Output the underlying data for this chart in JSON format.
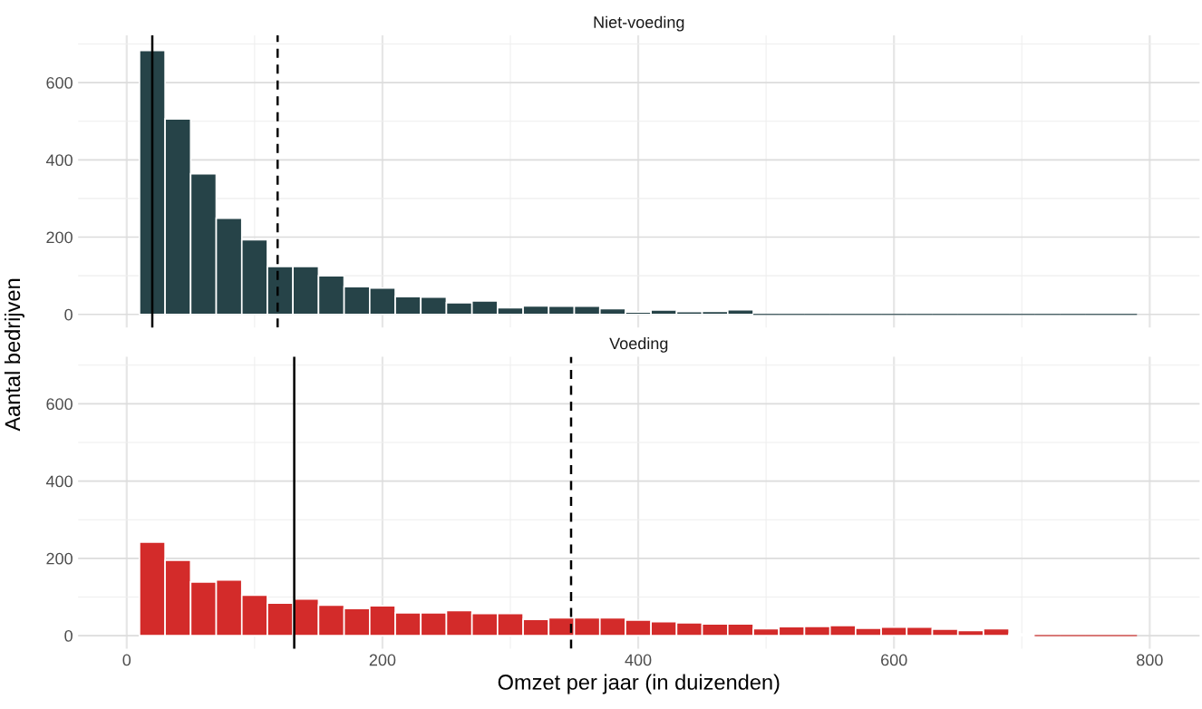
{
  "chart_data": [
    {
      "type": "histogram",
      "title": "Niet-voeding",
      "ylabel": "Aantal bedrijven",
      "bins": [
        10,
        30,
        50,
        70,
        90,
        110,
        130,
        150,
        170,
        190,
        210,
        230,
        250,
        270,
        290,
        310,
        330,
        350,
        370,
        390,
        410,
        430,
        450,
        470,
        490,
        510,
        530,
        550,
        570,
        590,
        610,
        630,
        650,
        670,
        690,
        710,
        730,
        750,
        770,
        790
      ],
      "values": [
        683,
        506,
        364,
        249,
        193,
        124,
        124,
        100,
        72,
        68,
        46,
        45,
        30,
        35,
        17,
        22,
        21,
        21,
        15,
        6,
        11,
        7,
        8,
        12,
        0,
        0,
        0,
        0,
        0,
        0,
        0,
        0,
        0,
        0,
        0,
        0,
        0,
        0,
        0
      ],
      "color": "#264348",
      "xlim": [
        -38,
        839
      ],
      "ylim": [
        -34,
        722
      ],
      "xticks": [
        0,
        {
          "value": 100,
          "label": null
        },
        200,
        {
          "value": 300,
          "label": null
        },
        400,
        {
          "value": 500,
          "label": null
        },
        600,
        {
          "value": 700,
          "label": null
        },
        800
      ],
      "yticks": [
        0,
        {
          "value": 100,
          "label": null
        },
        200,
        {
          "value": 300,
          "label": null
        },
        400,
        {
          "value": 500,
          "label": null
        },
        600,
        {
          "value": 700,
          "label": null
        }
      ],
      "tick_labels": "y",
      "grid": true,
      "ref_lines": [
        {
          "axis": "x",
          "value": 20,
          "line_style": "solid",
          "color": "#000000"
        },
        {
          "axis": "x",
          "value": 118,
          "line_style": "dashed",
          "color": "#000000"
        }
      ]
    },
    {
      "type": "histogram",
      "title": "Voeding",
      "xlabel": "Omzet per jaar (in duizenden)",
      "bins": [
        10,
        30,
        50,
        70,
        90,
        110,
        130,
        150,
        170,
        190,
        210,
        230,
        250,
        270,
        290,
        310,
        330,
        350,
        370,
        390,
        410,
        430,
        450,
        470,
        490,
        510,
        530,
        550,
        570,
        590,
        610,
        630,
        650,
        670,
        690,
        710,
        730,
        750,
        770,
        790
      ],
      "values": [
        242,
        195,
        139,
        144,
        105,
        84,
        95,
        79,
        70,
        77,
        59,
        59,
        65,
        57,
        57,
        42,
        46,
        46,
        46,
        40,
        36,
        33,
        30,
        30,
        18,
        23,
        24,
        26,
        19,
        22,
        22,
        17,
        13,
        18,
        4,
        0,
        0,
        0,
        0
      ],
      "color": "#d32b2a",
      "xlim": [
        -38,
        839
      ],
      "ylim": [
        -34,
        722
      ],
      "xticks": [
        0,
        {
          "value": 100,
          "label": null
        },
        200,
        {
          "value": 300,
          "label": null
        },
        400,
        {
          "value": 500,
          "label": null
        },
        600,
        {
          "value": 700,
          "label": null
        },
        800
      ],
      "yticks": [
        0,
        {
          "value": 100,
          "label": null
        },
        200,
        {
          "value": 300,
          "label": null
        },
        400,
        {
          "value": 500,
          "label": null
        },
        600,
        {
          "value": 700,
          "label": null
        }
      ],
      "grid": true,
      "ref_lines": [
        {
          "axis": "x",
          "value": 131,
          "line_style": "solid",
          "color": "#000000"
        },
        {
          "axis": "x",
          "value": 347.5,
          "line_style": "dashed",
          "color": "#000000"
        }
      ]
    }
  ]
}
